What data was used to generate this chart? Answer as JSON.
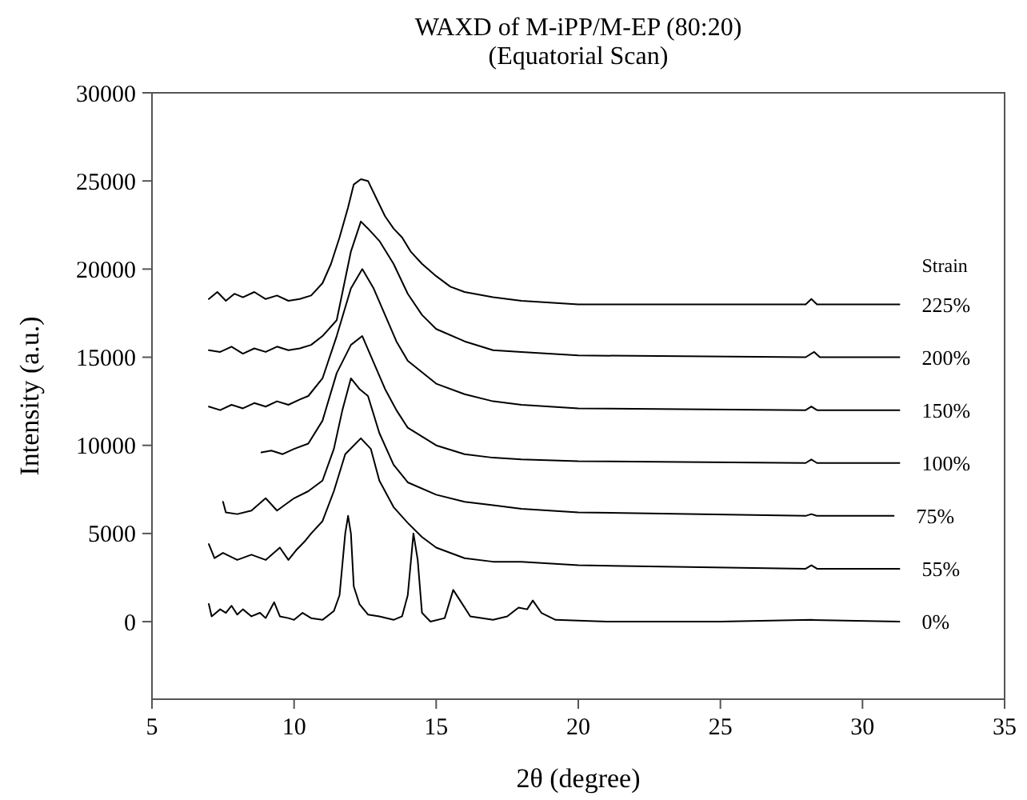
{
  "chart_data": {
    "type": "line",
    "title": "WAXD of M-iPP/M-EP (80:20)",
    "subtitle": "(Equatorial Scan)",
    "xlabel": "2θ (degree)",
    "ylabel": "Intensity (a.u.)",
    "legend_title": "Strain",
    "xlim": [
      5,
      35
    ],
    "xticks": [
      5,
      10,
      15,
      20,
      25,
      30,
      35
    ],
    "ylim": [
      -4400,
      30000
    ],
    "yticks": [
      0,
      5000,
      10000,
      15000,
      20000,
      25000,
      30000
    ],
    "grid": false,
    "legend": "right",
    "marker": "none",
    "line_style": "solid",
    "series": [
      {
        "name": "225%",
        "color": "#000000",
        "x": [
          7.0,
          7.3,
          7.6,
          7.9,
          8.2,
          8.6,
          9.0,
          9.4,
          9.8,
          10.2,
          10.6,
          11.0,
          11.3,
          11.6,
          11.9,
          12.1,
          12.35,
          12.6,
          12.9,
          13.2,
          13.5,
          13.8,
          14.1,
          14.5,
          15.0,
          15.5,
          16.0,
          17.0,
          18.0,
          20.0,
          24.0,
          28.0,
          28.2,
          28.4,
          31.3
        ],
        "values": [
          18300,
          18700,
          18200,
          18600,
          18400,
          18700,
          18300,
          18500,
          18200,
          18300,
          18500,
          19200,
          20300,
          21800,
          23500,
          24800,
          25100,
          25000,
          24000,
          23000,
          22300,
          21800,
          21000,
          20300,
          19600,
          19000,
          18700,
          18400,
          18200,
          18000,
          18000,
          18000,
          18300,
          18000,
          18000
        ]
      },
      {
        "name": "200%",
        "color": "#000000",
        "x": [
          7.0,
          7.4,
          7.8,
          8.2,
          8.6,
          9.0,
          9.4,
          9.8,
          10.2,
          10.6,
          11.0,
          11.5,
          12.0,
          12.35,
          12.6,
          13.0,
          13.5,
          14.0,
          14.5,
          15.0,
          16.0,
          17.0,
          18.0,
          20.0,
          28.0,
          28.3,
          28.5,
          31.3
        ],
        "values": [
          15400,
          15300,
          15600,
          15200,
          15500,
          15300,
          15600,
          15400,
          15500,
          15700,
          16200,
          17100,
          21000,
          22700,
          22300,
          21600,
          20300,
          18600,
          17400,
          16600,
          15900,
          15400,
          15300,
          15100,
          15000,
          15300,
          15000,
          15000
        ]
      },
      {
        "name": "150%",
        "color": "#000000",
        "x": [
          7.0,
          7.4,
          7.8,
          8.2,
          8.6,
          9.0,
          9.4,
          9.8,
          10.2,
          10.5,
          11.0,
          11.5,
          12.0,
          12.4,
          12.8,
          13.2,
          13.6,
          14.0,
          15.0,
          16.0,
          17.0,
          18.0,
          20.0,
          28.0,
          28.2,
          28.4,
          31.3
        ],
        "values": [
          12200,
          12000,
          12300,
          12100,
          12400,
          12200,
          12500,
          12300,
          12600,
          12800,
          13800,
          16200,
          18900,
          20000,
          18900,
          17400,
          15900,
          14800,
          13500,
          12900,
          12500,
          12300,
          12100,
          12000,
          12200,
          12000,
          12000
        ]
      },
      {
        "name": "100%",
        "color": "#000000",
        "x": [
          8.85,
          9.2,
          9.6,
          10.0,
          10.5,
          11.0,
          11.5,
          12.0,
          12.4,
          12.8,
          13.2,
          13.6,
          14.0,
          15.0,
          16.0,
          17.0,
          18.0,
          20.0,
          28.0,
          28.2,
          28.4,
          31.3
        ],
        "values": [
          9600,
          9700,
          9500,
          9800,
          10100,
          11400,
          14100,
          15700,
          16200,
          14700,
          13200,
          12000,
          11000,
          10000,
          9500,
          9300,
          9200,
          9100,
          9000,
          9200,
          9000,
          9000
        ]
      },
      {
        "name": "75%",
        "color": "#000000",
        "x": [
          7.5,
          7.6,
          8.0,
          8.5,
          9.0,
          9.4,
          10.0,
          10.5,
          11.0,
          11.4,
          11.7,
          12.0,
          12.3,
          12.6,
          13.0,
          13.5,
          14.0,
          15.0,
          16.0,
          17.0,
          18.0,
          20.0,
          28.0,
          28.2,
          28.4,
          31.1
        ],
        "values": [
          6800,
          6200,
          6100,
          6300,
          7000,
          6300,
          7000,
          7400,
          8000,
          9800,
          12000,
          13800,
          13200,
          12800,
          10700,
          8900,
          7900,
          7200,
          6800,
          6600,
          6400,
          6200,
          6000,
          6100,
          6000,
          6000
        ]
      },
      {
        "name": "55%",
        "color": "#000000",
        "x": [
          7.0,
          7.2,
          7.5,
          8.0,
          8.5,
          9.0,
          9.5,
          9.8,
          10.1,
          10.4,
          10.6,
          11.0,
          11.4,
          11.8,
          12.35,
          12.7,
          13.0,
          13.5,
          14.0,
          14.5,
          15.0,
          16.0,
          17.0,
          18.0,
          20.0,
          28.0,
          28.2,
          28.4,
          31.3
        ],
        "values": [
          4400,
          3600,
          3900,
          3500,
          3800,
          3500,
          4200,
          3500,
          4100,
          4600,
          5000,
          5700,
          7400,
          9500,
          10400,
          9800,
          8000,
          6500,
          5600,
          4800,
          4200,
          3600,
          3400,
          3400,
          3200,
          3000,
          3200,
          3000,
          3000
        ]
      },
      {
        "name": "0%",
        "color": "#000000",
        "x": [
          7.0,
          7.1,
          7.4,
          7.6,
          7.8,
          8.0,
          8.2,
          8.5,
          8.8,
          9.0,
          9.3,
          9.5,
          9.8,
          10.0,
          10.3,
          10.6,
          11.0,
          11.4,
          11.6,
          11.8,
          11.9,
          12.0,
          12.1,
          12.3,
          12.6,
          13.0,
          13.5,
          13.8,
          14.0,
          14.2,
          14.35,
          14.5,
          14.8,
          15.3,
          15.6,
          15.8,
          16.2,
          17.0,
          17.5,
          17.9,
          18.2,
          18.4,
          18.7,
          19.2,
          21.0,
          25.0,
          28.2,
          31.3
        ],
        "values": [
          1000,
          300,
          700,
          500,
          900,
          400,
          700,
          300,
          500,
          200,
          1100,
          300,
          200,
          100,
          500,
          200,
          100,
          600,
          1500,
          5000,
          6000,
          5000,
          2000,
          1000,
          400,
          300,
          100,
          300,
          1500,
          5000,
          3500,
          500,
          0,
          200,
          1800,
          1300,
          300,
          100,
          300,
          800,
          700,
          1200,
          500,
          100,
          0,
          0,
          100,
          0
        ]
      }
    ]
  }
}
